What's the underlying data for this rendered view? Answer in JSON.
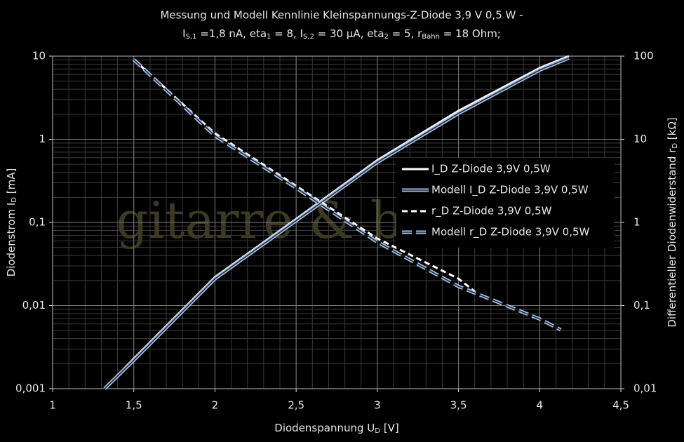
{
  "chart_data": {
    "type": "line",
    "title": "Messung und Modell Kennlinie  Kleinspannungs-Z-Diode  3,9 V 0,5 W -",
    "subtitle": [
      {
        "text": "I"
      },
      {
        "text": "S,1",
        "sub": true
      },
      {
        "text": " =1,8 nA, eta"
      },
      {
        "text": "1",
        "sub": true
      },
      {
        "text": " = 8, I"
      },
      {
        "text": "S,2",
        "sub": true
      },
      {
        "text": " = 30 µA, eta"
      },
      {
        "text": "2",
        "sub": true
      },
      {
        "text": " = 5, r"
      },
      {
        "text": "Bahn",
        "sub": true
      },
      {
        "text": " = 18 Ohm;"
      }
    ],
    "xlabel": [
      {
        "text": "Diodenspannung U"
      },
      {
        "text": "D",
        "sub": true
      },
      {
        "text": " [V]"
      }
    ],
    "ylabel": [
      {
        "text": "Diodenstrom I"
      },
      {
        "text": "D",
        "sub": true
      },
      {
        "text": " [mA]"
      }
    ],
    "y2label": [
      {
        "text": "Differentieller Diodenwiderstand r"
      },
      {
        "text": "D",
        "sub": true
      },
      {
        "text": " [kΩ]"
      }
    ],
    "watermark": "gitarre & basteln",
    "xlim": [
      1,
      4.5
    ],
    "xticks": [
      1,
      {
        "value": 1.5,
        "label": "1,5"
      },
      2,
      {
        "value": 2.5,
        "label": "2,5"
      },
      3,
      {
        "value": 3.5,
        "label": "3,5"
      },
      4,
      {
        "value": 4.5,
        "label": "4,5"
      }
    ],
    "ylim": [
      0.001,
      10
    ],
    "ylog": true,
    "yticks": [
      {
        "value": 0.001,
        "label": "0,001"
      },
      {
        "value": 0.01,
        "label": "0,01"
      },
      {
        "value": 0.1,
        "label": "0,1"
      },
      1,
      10
    ],
    "y2lim": [
      0.01,
      100
    ],
    "y2log": true,
    "y2ticks": [
      {
        "value": 0.01,
        "label": "0,01"
      },
      {
        "value": 0.1,
        "label": "0,1"
      },
      1,
      10,
      100
    ],
    "grid": true,
    "minor_grid": true,
    "legend": "right",
    "series": [
      {
        "name": "I_D Z-Diode 3,9V 0,5W",
        "color": "#ffffff",
        "style": "solid",
        "x": [
          1.32,
          1.5,
          2,
          2.5,
          3,
          3.5,
          4,
          4.18
        ],
        "values": [
          0.001,
          0.0023,
          0.022,
          0.11,
          0.56,
          2.2,
          7.2,
          10
        ]
      },
      {
        "name": "Modell I_D Z-Diode 3,9V 0,5W",
        "color": "#a8c0e0",
        "style": "double",
        "x": [
          1.32,
          1.5,
          2,
          2.5,
          3,
          3.5,
          4,
          4.18
        ],
        "values": [
          0.001,
          0.0022,
          0.021,
          0.105,
          0.53,
          2.05,
          6.8,
          9.5
        ]
      },
      {
        "name": "r_D Z-Diode 3,9V 0,5W",
        "color": "#ffffff",
        "style": "dashed",
        "axis": "y2",
        "x": [
          1.5,
          2,
          2.5,
          3,
          3.5,
          3.6
        ],
        "values": [
          91,
          11.8,
          2.75,
          0.64,
          0.21,
          0.148
        ]
      },
      {
        "name": "Modell r_D Z-Diode 3,9V 0,5W",
        "color": "#a8c0e0",
        "style": "double-dashed",
        "axis": "y2",
        "x": [
          1.5,
          2,
          2.5,
          3,
          3.5,
          4,
          4.13
        ],
        "values": [
          91,
          11,
          2.6,
          0.58,
          0.17,
          0.069,
          0.051
        ]
      }
    ]
  }
}
